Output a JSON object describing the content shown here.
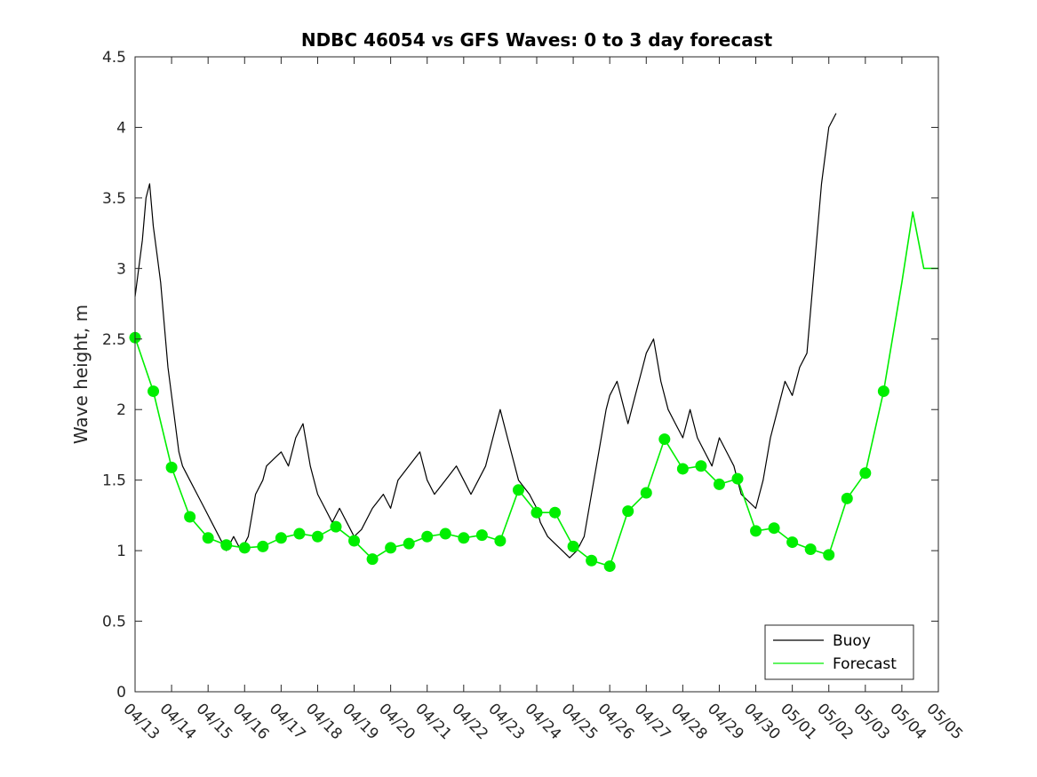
{
  "chart_data": {
    "type": "line",
    "title": "NDBC 46054 vs GFS Waves: 0 to 3 day forecast",
    "xlabel": "",
    "ylabel": "Wave height, m",
    "xlim": [
      0,
      22
    ],
    "ylim": [
      0,
      4.5
    ],
    "yticks": [
      0,
      0.5,
      1,
      1.5,
      2,
      2.5,
      3,
      3.5,
      4,
      4.5
    ],
    "ytick_labels": [
      "0",
      "0.5",
      "1",
      "1.5",
      "2",
      "2.5",
      "3",
      "3.5",
      "4",
      "4.5"
    ],
    "xtick_labels": [
      "04/13",
      "04/14",
      "04/15",
      "04/16",
      "04/17",
      "04/18",
      "04/19",
      "04/20",
      "04/21",
      "04/22",
      "04/23",
      "04/24",
      "04/25",
      "04/26",
      "04/27",
      "04/28",
      "04/29",
      "04/30",
      "05/01",
      "05/02",
      "05/03",
      "05/04",
      "05/05"
    ],
    "grid": false,
    "legend_position": "bottom-right",
    "colors": {
      "buoy": "#000000",
      "forecast": "#00ee00",
      "axes": "#262626"
    },
    "series": [
      {
        "name": "Buoy",
        "x": [
          0,
          0.1,
          0.2,
          0.3,
          0.4,
          0.5,
          0.6,
          0.7,
          0.8,
          0.9,
          1.0,
          1.1,
          1.2,
          1.3,
          1.5,
          1.7,
          1.9,
          2.1,
          2.3,
          2.5,
          2.7,
          2.9,
          3.0,
          3.1,
          3.3,
          3.5,
          3.6,
          3.8,
          4.0,
          4.2,
          4.4,
          4.6,
          4.8,
          5.0,
          5.2,
          5.4,
          5.6,
          5.8,
          6.0,
          6.2,
          6.5,
          6.8,
          7.0,
          7.2,
          7.5,
          7.8,
          8.0,
          8.2,
          8.5,
          8.8,
          9.0,
          9.2,
          9.4,
          9.6,
          9.8,
          10.0,
          10.2,
          10.5,
          10.8,
          11.0,
          11.1,
          11.3,
          11.5,
          11.7,
          11.9,
          12.1,
          12.3,
          12.5,
          12.7,
          12.9,
          13.0,
          13.2,
          13.4,
          13.5,
          13.7,
          13.9,
          14.0,
          14.2,
          14.4,
          14.6,
          14.8,
          15.0,
          15.2,
          15.4,
          15.6,
          15.8,
          16.0,
          16.2,
          16.4,
          16.5,
          16.6,
          16.8,
          17.0,
          17.2,
          17.4,
          17.6,
          17.8,
          18.0,
          18.2,
          18.4,
          18.6,
          18.8,
          19.0,
          19.2,
          19.4,
          19.6,
          19.8,
          20.0,
          20.2,
          20.4,
          20.6,
          20.8,
          21.0,
          21.1,
          21.2,
          21.3
        ],
        "y": [
          2.8,
          3.0,
          3.2,
          3.5,
          3.6,
          3.3,
          3.1,
          2.9,
          2.6,
          2.3,
          2.1,
          1.9,
          1.7,
          1.6,
          1.5,
          1.4,
          1.3,
          1.2,
          1.1,
          1.0,
          1.1,
          1.0,
          1.05,
          1.1,
          1.4,
          1.5,
          1.6,
          1.65,
          1.7,
          1.6,
          1.8,
          1.9,
          1.6,
          1.4,
          1.3,
          1.2,
          1.3,
          1.2,
          1.1,
          1.15,
          1.3,
          1.4,
          1.3,
          1.5,
          1.6,
          1.7,
          1.5,
          1.4,
          1.5,
          1.6,
          1.5,
          1.4,
          1.5,
          1.6,
          1.8,
          2.0,
          1.8,
          1.5,
          1.4,
          1.3,
          1.2,
          1.1,
          1.05,
          1.0,
          0.95,
          1.0,
          1.1,
          1.4,
          1.7,
          2.0,
          2.1,
          2.2,
          2.0,
          1.9,
          2.1,
          2.3,
          2.4,
          2.5,
          2.2,
          2.0,
          1.9,
          1.8,
          2.0,
          1.8,
          1.7,
          1.6,
          1.8,
          1.7,
          1.6,
          1.5,
          1.4,
          1.35,
          1.3,
          1.5,
          1.8,
          2.0,
          2.2,
          2.1,
          2.3,
          2.4,
          3.0,
          3.6,
          4.0,
          4.1,
          null,
          null,
          null,
          null,
          null,
          null,
          null,
          null,
          null,
          null,
          null,
          null
        ],
        "color": "#000000"
      },
      {
        "name": "Forecast",
        "x": [
          0,
          0.5,
          1.0,
          1.5,
          2.0,
          2.5,
          3.0,
          3.5,
          4.0,
          4.5,
          5.0,
          5.5,
          6.0,
          6.5,
          7.0,
          7.5,
          8.0,
          8.5,
          9.0,
          9.5,
          10.0,
          10.5,
          11.0,
          11.5,
          12.0,
          12.5,
          13.0,
          13.5,
          14.0,
          14.5,
          15.0,
          15.5,
          16.0,
          16.5,
          17.0,
          17.5,
          18.0,
          18.5,
          19.0,
          19.5,
          20.0,
          20.5,
          21.0,
          21.3,
          21.6,
          22.0
        ],
        "y": [
          2.51,
          2.13,
          1.59,
          1.24,
          1.09,
          1.04,
          1.02,
          1.03,
          1.09,
          1.12,
          1.1,
          1.17,
          1.07,
          0.94,
          1.02,
          1.05,
          1.1,
          1.12,
          1.09,
          1.11,
          1.07,
          1.43,
          1.27,
          1.27,
          1.03,
          0.93,
          0.89,
          1.28,
          1.41,
          1.79,
          1.58,
          1.6,
          1.47,
          1.51,
          1.14,
          1.16,
          1.06,
          1.01,
          0.97,
          1.37,
          1.55,
          2.13,
          2.9,
          3.4,
          3.0,
          3.0
        ],
        "markers": true,
        "color": "#00ee00"
      }
    ]
  }
}
